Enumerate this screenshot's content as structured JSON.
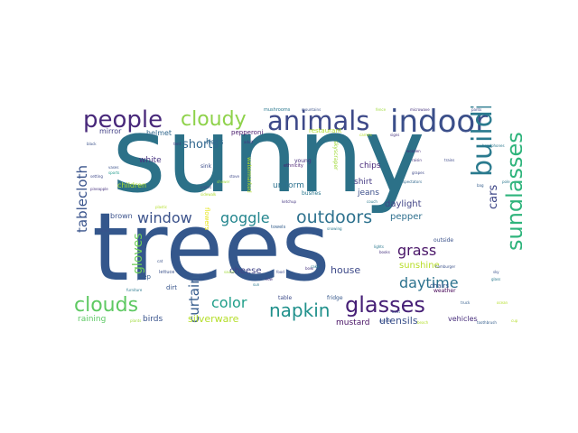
{
  "words": [
    {
      "text": "sunny",
      "color": "#2c7188"
    },
    {
      "text": "trees",
      "color": "#34578c"
    },
    {
      "text": "indoor",
      "color": "#3b4f8a"
    },
    {
      "text": "animals",
      "color": "#3e4989"
    },
    {
      "text": "people",
      "color": "#48287a"
    },
    {
      "text": "cloudy",
      "color": "#8ed24a"
    },
    {
      "text": "building",
      "color": "#2a7a8e"
    },
    {
      "text": "sunglasses",
      "color": "#2fb47c"
    },
    {
      "text": "glasses",
      "color": "#461f76"
    },
    {
      "text": "clouds",
      "color": "#5ec962"
    },
    {
      "text": "napkin",
      "color": "#21918c"
    },
    {
      "text": "outdoors",
      "color": "#2d718e"
    },
    {
      "text": "window",
      "color": "#3b528b"
    },
    {
      "text": "goggle",
      "color": "#24868e"
    },
    {
      "text": "color",
      "color": "#1f9e89"
    },
    {
      "text": "daytime",
      "color": "#2c728e"
    },
    {
      "text": "grass",
      "color": "#481467"
    },
    {
      "text": "curtain",
      "color": "#365c8d"
    },
    {
      "text": "tablecloth",
      "color": "#3a548c"
    },
    {
      "text": "gloves",
      "color": "#6ece58"
    },
    {
      "text": "cars",
      "color": "#3f4788"
    },
    {
      "text": "shorts",
      "color": "#31678e"
    },
    {
      "text": "silverware",
      "color": "#b5de2b"
    },
    {
      "text": "house",
      "color": "#3e4a89"
    },
    {
      "text": "sunshine",
      "color": "#b8de29"
    },
    {
      "text": "cheese",
      "color": "#414487"
    },
    {
      "text": "utensils",
      "color": "#3b518b"
    },
    {
      "text": "mustard",
      "color": "#471164"
    },
    {
      "text": "birds",
      "color": "#3a548c"
    },
    {
      "text": "raining",
      "color": "#5cc863"
    },
    {
      "text": "vehicles",
      "color": "#472d7b"
    },
    {
      "text": "jeans",
      "color": "#3c4f8a"
    },
    {
      "text": "shirt",
      "color": "#443a83"
    },
    {
      "text": "pepper",
      "color": "#2e6f8e"
    },
    {
      "text": "daylight",
      "color": "#414487"
    },
    {
      "text": "uniform",
      "color": "#2c718e"
    },
    {
      "text": "white",
      "color": "#46337f"
    },
    {
      "text": "hats",
      "color": "#31688e"
    },
    {
      "text": "chips",
      "color": "#482979"
    },
    {
      "text": "children",
      "color": "#addc30"
    },
    {
      "text": "brown",
      "color": "#3b528b"
    },
    {
      "text": "helmet",
      "color": "#31688e"
    },
    {
      "text": "mirror",
      "color": "#424086"
    },
    {
      "text": "pepperoni",
      "color": "#481a6c"
    },
    {
      "text": "restaurant",
      "color": "#b2dd2d"
    },
    {
      "text": "flowers",
      "color": "#e5e419"
    },
    {
      "text": "chairs",
      "color": "#3a548c"
    },
    {
      "text": "weather",
      "color": "#440154"
    },
    {
      "text": "outside",
      "color": "#3b528b"
    },
    {
      "text": "fridge",
      "color": "#38598c"
    },
    {
      "text": "table",
      "color": "#3e4c8a"
    },
    {
      "text": "dirt",
      "color": "#39568c"
    },
    {
      "text": "jeep",
      "color": "#355f8d"
    },
    {
      "text": "bushes",
      "color": "#2a788e"
    },
    {
      "text": "sink",
      "color": "#3d4e8a"
    },
    {
      "text": "young",
      "color": "#472e7c"
    },
    {
      "text": "ethnicity",
      "color": "#481c6e"
    },
    {
      "text": "skyscraper",
      "color": "#a0da39"
    },
    {
      "text": "watermarked",
      "color": "#b5de2b"
    },
    {
      "text": "towels",
      "color": "#355f8d"
    },
    {
      "text": "mushrooms",
      "color": "#2a788e"
    },
    {
      "text": "lettuce",
      "color": "#3b528b"
    },
    {
      "text": "sidewalk",
      "color": "#addc30"
    },
    {
      "text": "plates",
      "color": "#3e4989"
    },
    {
      "text": "ketchup",
      "color": "#453781"
    },
    {
      "text": "vases",
      "color": "#3b528b"
    },
    {
      "text": "sports",
      "color": "#1f9a8a"
    },
    {
      "text": "setting",
      "color": "#3e4989"
    },
    {
      "text": "toothbrush",
      "color": "#355f8d"
    },
    {
      "text": "gender",
      "color": "#3b528b"
    },
    {
      "text": "spectators",
      "color": "#31688e"
    },
    {
      "text": "wooden",
      "color": "#472d7b"
    },
    {
      "text": "lights",
      "color": "#2a788e"
    },
    {
      "text": "books",
      "color": "#46327e"
    },
    {
      "text": "carrots",
      "color": "#b5de2b"
    },
    {
      "text": "fence",
      "color": "#9fda3a"
    },
    {
      "text": "microwave",
      "color": "#46337f"
    },
    {
      "text": "mountains",
      "color": "#3b528b"
    },
    {
      "text": "snowing",
      "color": "#2a788e"
    },
    {
      "text": "pants",
      "color": "#3e4989"
    },
    {
      "text": "headphones",
      "color": "#2a788e"
    },
    {
      "text": "beach",
      "color": "#b5de2b"
    },
    {
      "text": "pineapple",
      "color": "#46327e"
    },
    {
      "text": "stripes",
      "color": "#3b528b"
    },
    {
      "text": "plants",
      "color": "#9fda3a"
    },
    {
      "text": "couch",
      "color": "#2a788e"
    },
    {
      "text": "adult",
      "color": "#46337f"
    },
    {
      "text": "grapes",
      "color": "#3e4989"
    },
    {
      "text": "bag",
      "color": "#355f8d"
    },
    {
      "text": "black",
      "color": "#3b528b"
    },
    {
      "text": "plastic",
      "color": "#b5de2b"
    },
    {
      "text": "signs",
      "color": "#46337f"
    },
    {
      "text": "furniture",
      "color": "#2a788e"
    },
    {
      "text": "stove",
      "color": "#3e4989"
    },
    {
      "text": "shower",
      "color": "#9fda3a"
    },
    {
      "text": "hamburger",
      "color": "#3b528b"
    },
    {
      "text": "bowl",
      "color": "#46337f"
    },
    {
      "text": "pole",
      "color": "#2a788e"
    },
    {
      "text": "cat",
      "color": "#3b528b"
    },
    {
      "text": "tent",
      "color": "#46327e"
    },
    {
      "text": "ocean",
      "color": "#b5de2b"
    },
    {
      "text": "food",
      "color": "#3e4989"
    },
    {
      "text": "truck",
      "color": "#355f8d"
    },
    {
      "text": "sauce",
      "color": "#9fda3a"
    },
    {
      "text": "cake",
      "color": "#2a788e"
    },
    {
      "text": "cow",
      "color": "#46337f"
    },
    {
      "text": "boat",
      "color": "#3b528b"
    },
    {
      "text": "sun",
      "color": "#2a788e"
    },
    {
      "text": "cup",
      "color": "#b5de2b"
    },
    {
      "text": "raisin",
      "color": "#46337f"
    },
    {
      "text": "trains",
      "color": "#3e4989"
    },
    {
      "text": "glass",
      "color": "#2a788e"
    },
    {
      "text": "sky",
      "color": "#3b528b"
    }
  ]
}
